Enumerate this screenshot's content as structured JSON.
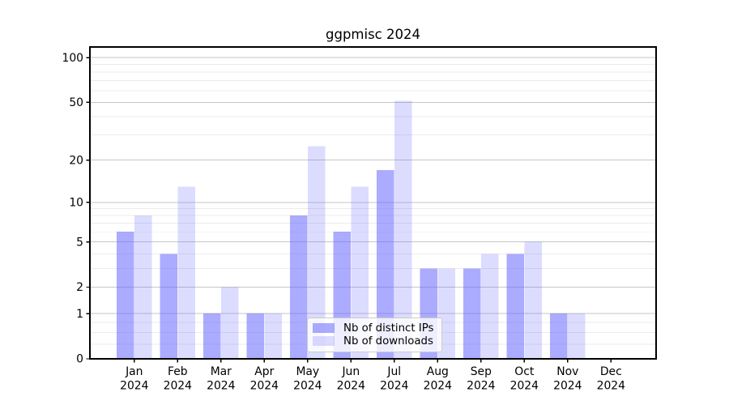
{
  "chart_data": {
    "type": "bar",
    "title": "ggpmisc 2024",
    "categories": [
      "Jan 2024",
      "Feb 2024",
      "Mar 2024",
      "Apr 2024",
      "May 2024",
      "Jun 2024",
      "Jul 2024",
      "Aug 2024",
      "Sep 2024",
      "Oct 2024",
      "Nov 2024",
      "Dec 2024"
    ],
    "series": [
      {
        "name": "Nb of distinct IPs",
        "values": [
          6,
          4,
          1,
          1,
          8,
          6,
          17,
          3,
          3,
          4,
          1,
          0
        ],
        "fill": "rgba(102,102,255,0.55)"
      },
      {
        "name": "Nb of downloads",
        "values": [
          8,
          13,
          2,
          1,
          25,
          13,
          51,
          3,
          4,
          5,
          1,
          0
        ],
        "fill": "rgba(102,102,255,0.23)"
      }
    ],
    "yscale": "log1p",
    "ylim": [
      0,
      118
    ],
    "yticks": [
      0,
      1,
      2,
      5,
      10,
      20,
      50,
      100
    ],
    "minor_yticks": [
      0.25,
      0.5,
      0.75,
      3,
      4,
      6,
      7,
      8,
      9,
      30,
      40,
      60,
      70,
      80,
      90
    ],
    "xlabel": "",
    "ylabel": "",
    "grid": "horizontal",
    "legend_position": "inside-bottom-center",
    "colors": {
      "bar_base": "#6666ff",
      "major_grid": "#c6c6c6",
      "minor_grid": "#ebebeb",
      "spine": "#000000",
      "tick_text": "#000000",
      "background": "#ffffff",
      "legend_border": "#cccccc"
    }
  }
}
